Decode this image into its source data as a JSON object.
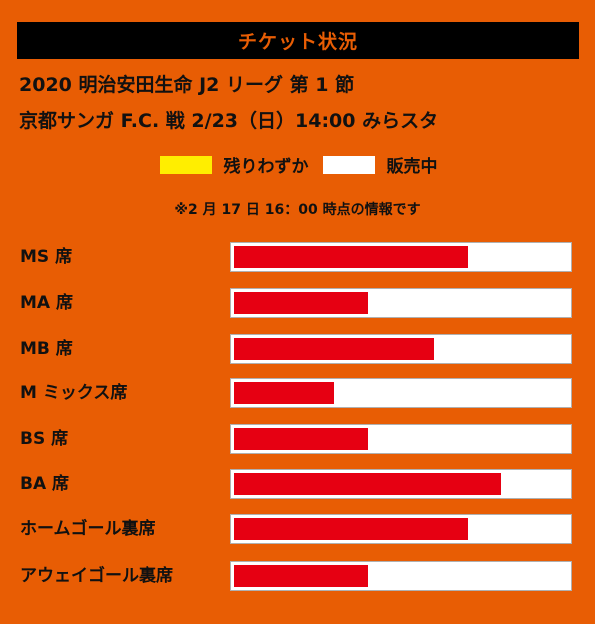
{
  "header": {
    "title": "チケット状況"
  },
  "match": {
    "line1": "2020 明治安田生命 J2 リーグ 第 1 節",
    "line2": "京都サンガ F.C. 戦 2/23（日）14:00 みらスタ"
  },
  "legend": {
    "items": [
      {
        "label": "残りわずか",
        "color": "#ffee00"
      },
      {
        "label": "販売中",
        "color": "#ffffff"
      }
    ]
  },
  "note": "※2 月 17 日 16：00 時点の情報です",
  "colors": {
    "background": "#e85d04",
    "sold_fill": "#e60012",
    "header_bar": "#000000"
  },
  "seats": [
    {
      "label": "MS 席",
      "sold_fraction": 0.7
    },
    {
      "label": "MA 席",
      "sold_fraction": 0.4
    },
    {
      "label": "MB 席",
      "sold_fraction": 0.6
    },
    {
      "label": "M ミックス席",
      "sold_fraction": 0.3
    },
    {
      "label": "BS 席",
      "sold_fraction": 0.4
    },
    {
      "label": "BA 席",
      "sold_fraction": 0.8
    },
    {
      "label": "ホームゴール裏席",
      "sold_fraction": 0.7
    },
    {
      "label": "アウェイゴール裏席",
      "sold_fraction": 0.4
    }
  ]
}
